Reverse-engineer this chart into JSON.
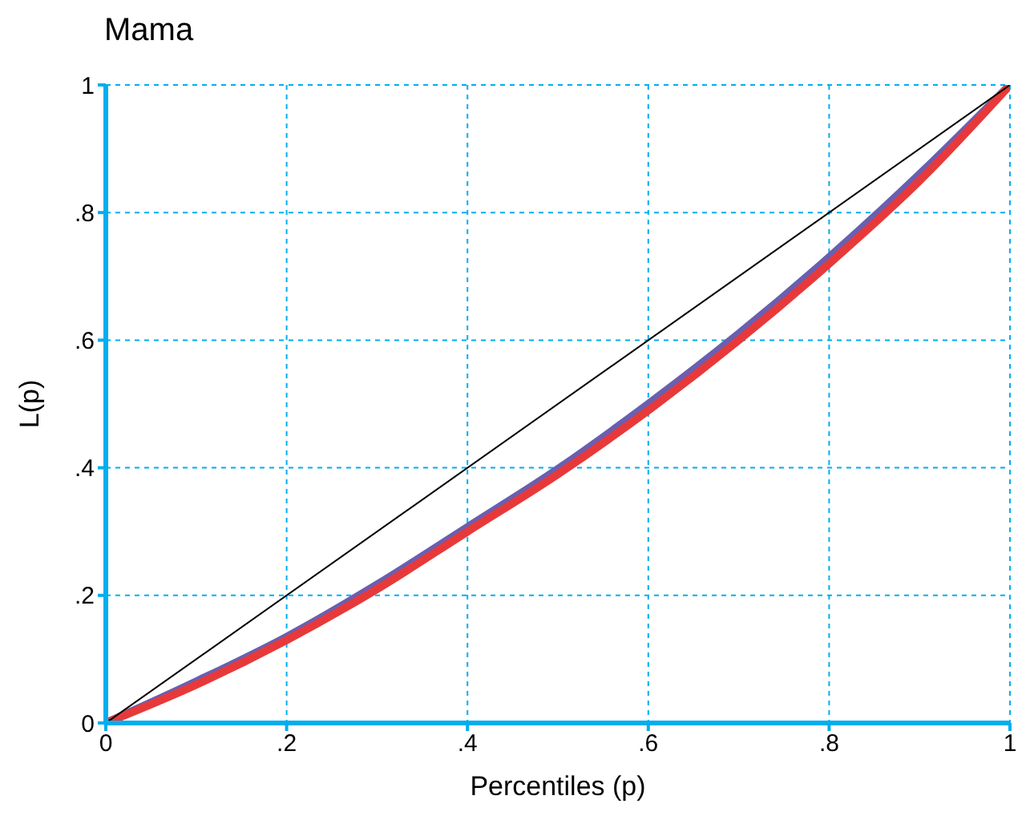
{
  "chart_data": {
    "type": "line",
    "title": "Mama",
    "xlabel": "Percentiles (p)",
    "ylabel": "L(p)",
    "x": [
      0,
      0.1,
      0.2,
      0.3,
      0.4,
      0.5,
      0.6,
      0.7,
      0.8,
      0.9,
      1
    ],
    "series": [
      {
        "color": "#6a5fb0",
        "values": [
          0,
          0.065,
          0.135,
          0.217,
          0.307,
          0.398,
          0.5,
          0.61,
          0.73,
          0.86,
          1
        ]
      },
      {
        "color": "#e8393a",
        "values": [
          0,
          0.06,
          0.13,
          0.21,
          0.3,
          0.39,
          0.49,
          0.6,
          0.72,
          0.85,
          1
        ]
      },
      {
        "color": "#000000",
        "x": [
          0,
          1
        ],
        "values": [
          0,
          1
        ]
      }
    ],
    "xlim": [
      0,
      1
    ],
    "ylim": [
      0,
      1
    ],
    "xticks": [
      0,
      {
        "value": 0.2,
        "label": ".2"
      },
      {
        "value": 0.4,
        "label": ".4"
      },
      {
        "value": 0.6,
        "label": ".6"
      },
      {
        "value": 0.8,
        "label": ".8"
      },
      1
    ],
    "yticks": [
      0,
      {
        "value": 0.2,
        "label": ".2"
      },
      {
        "value": 0.4,
        "label": ".4"
      },
      {
        "value": 0.6,
        "label": ".6"
      },
      {
        "value": 0.8,
        "label": ".8"
      },
      1
    ],
    "grid": true,
    "marker": "none",
    "line_style": "solid"
  }
}
